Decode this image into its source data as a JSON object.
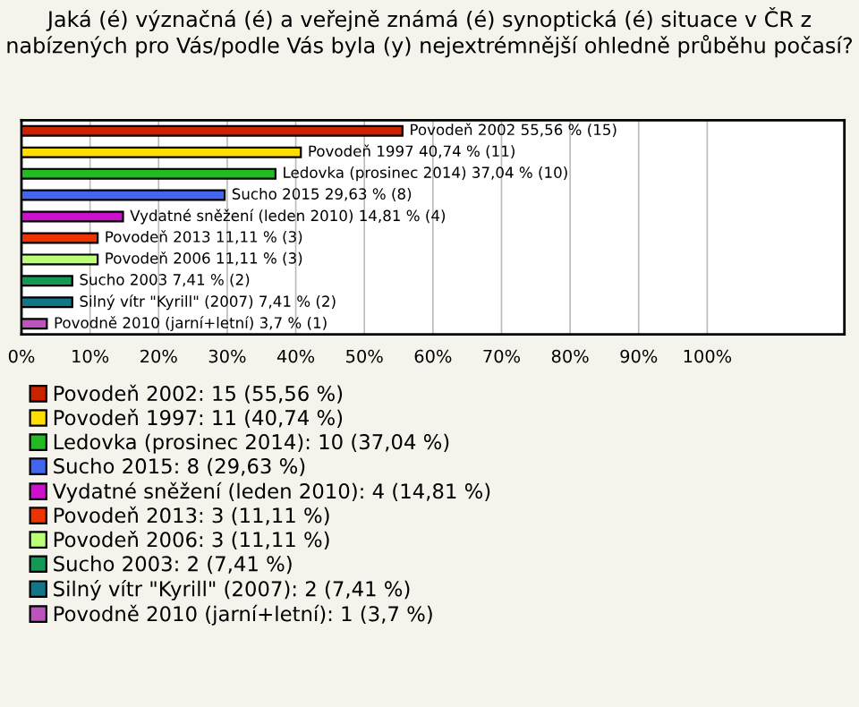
{
  "chart_data": {
    "type": "bar",
    "orientation": "horizontal",
    "title": "Jaká (é) význačná (é) a veřejně známá (é) synoptická (é) situace v ČR z nabízených pro Vás/podle Vás byla (y) nejextrémnější ohledně průběhu počasí?",
    "categories": [
      null,
      null,
      null,
      null,
      null,
      null,
      null,
      null,
      null,
      null
    ],
    "series": [
      {
        "name": "Povodeň 2002: 15 (55,56 %)",
        "color": "#cc2200",
        "values": [
          55.56,
          null,
          null,
          null,
          null,
          null,
          null,
          null,
          null,
          null
        ],
        "value_labels": [
          "Povodeň 2002 55,56 % (15)",
          null,
          null,
          null,
          null,
          null,
          null,
          null,
          null,
          null
        ]
      },
      {
        "name": "Povodeň 1997: 11 (40,74 %)",
        "color": "#ffdd00",
        "values": [
          null,
          40.74,
          null,
          null,
          null,
          null,
          null,
          null,
          null,
          null
        ],
        "value_labels": [
          null,
          "Povodeň 1997 40,74 % (11)",
          null,
          null,
          null,
          null,
          null,
          null,
          null,
          null
        ]
      },
      {
        "name": "Ledovka (prosinec 2014): 10 (37,04 %)",
        "color": "#22bb22",
        "values": [
          null,
          null,
          37.04,
          null,
          null,
          null,
          null,
          null,
          null,
          null
        ],
        "value_labels": [
          null,
          null,
          "Ledovka (prosinec 2014) 37,04 % (10)",
          null,
          null,
          null,
          null,
          null,
          null,
          null
        ]
      },
      {
        "name": "Sucho 2015: 8 (29,63 %)",
        "color": "#4466ee",
        "values": [
          null,
          null,
          null,
          29.63,
          null,
          null,
          null,
          null,
          null,
          null
        ],
        "value_labels": [
          null,
          null,
          null,
          "Sucho 2015 29,63 % (8)",
          null,
          null,
          null,
          null,
          null,
          null
        ]
      },
      {
        "name": "Vydatné sněžení (leden 2010): 4 (14,81 %)",
        "color": "#cc11cc",
        "values": [
          null,
          null,
          null,
          null,
          14.81,
          null,
          null,
          null,
          null,
          null
        ],
        "value_labels": [
          null,
          null,
          null,
          null,
          "Vydatné sněžení (leden 2010) 14,81 % (4)",
          null,
          null,
          null,
          null,
          null
        ]
      },
      {
        "name": "Povodeň 2013: 3 (11,11 %)",
        "color": "#ee3300",
        "values": [
          null,
          null,
          null,
          null,
          null,
          11.11,
          null,
          null,
          null,
          null
        ],
        "value_labels": [
          null,
          null,
          null,
          null,
          null,
          "Povodeň 2013 11,11 % (3)",
          null,
          null,
          null,
          null
        ]
      },
      {
        "name": "Povodeň 2006: 3 (11,11 %)",
        "color": "#bbff77",
        "values": [
          null,
          null,
          null,
          null,
          null,
          null,
          11.11,
          null,
          null,
          null
        ],
        "value_labels": [
          null,
          null,
          null,
          null,
          null,
          null,
          "Povodeň 2006 11,11 % (3)",
          null,
          null,
          null
        ]
      },
      {
        "name": "Sucho 2003: 2 (7,41 %)",
        "color": "#119955",
        "values": [
          null,
          null,
          null,
          null,
          null,
          null,
          null,
          7.41,
          null,
          null
        ],
        "value_labels": [
          null,
          null,
          null,
          null,
          null,
          null,
          null,
          "Sucho 2003 7,41 % (2)",
          null,
          null
        ]
      },
      {
        "name": "Silný vítr \"Kyrill\" (2007): 2 (7,41 %)",
        "color": "#117788",
        "values": [
          null,
          null,
          null,
          null,
          null,
          null,
          null,
          null,
          7.41,
          null
        ],
        "value_labels": [
          null,
          null,
          null,
          null,
          null,
          null,
          null,
          null,
          "Silný vítr \"Kyrill\" (2007) 7,41 % (2)",
          null
        ]
      },
      {
        "name": "Povodně 2010 (jarní+letní): 1 (3,7 %)",
        "color": "#bb55bb",
        "values": [
          null,
          null,
          null,
          null,
          null,
          null,
          null,
          null,
          null,
          3.7
        ],
        "value_labels": [
          null,
          null,
          null,
          null,
          null,
          null,
          null,
          null,
          null,
          "Povodně 2010 (jarní+letní) 3,7 % (1)"
        ]
      }
    ],
    "xlim": [
      0,
      120
    ],
    "xticks": [
      {
        "value": 0,
        "label": "0%"
      },
      {
        "value": 10,
        "label": "10%"
      },
      {
        "value": 20,
        "label": "20%"
      },
      {
        "value": 30,
        "label": "30%"
      },
      {
        "value": 40,
        "label": "40%"
      },
      {
        "value": 50,
        "label": "50%"
      },
      {
        "value": 60,
        "label": "60%"
      },
      {
        "value": 70,
        "label": "70%"
      },
      {
        "value": 80,
        "label": "80%"
      },
      {
        "value": 90,
        "label": "90%"
      },
      {
        "value": 100,
        "label": "100%"
      }
    ],
    "grid": "x",
    "legend": "bottom"
  }
}
